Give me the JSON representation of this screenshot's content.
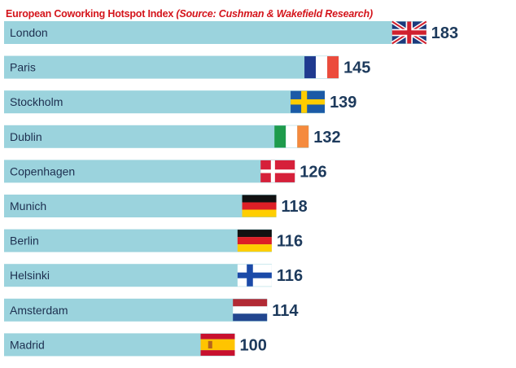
{
  "title": {
    "main": "European Coworking Hotspot Index",
    "source": "(Source: Cushman & Wakefield Research)"
  },
  "chart_data": {
    "type": "bar",
    "orientation": "horizontal",
    "categories": [
      "London",
      "Paris",
      "Stockholm",
      "Dublin",
      "Copenhagen",
      "Munich",
      "Berlin",
      "Helsinki",
      "Amsterdam",
      "Madrid"
    ],
    "values": [
      183,
      145,
      139,
      132,
      126,
      118,
      116,
      116,
      114,
      100
    ],
    "flags": [
      "uk",
      "france",
      "sweden",
      "ireland",
      "denmark",
      "germany",
      "germany",
      "finland",
      "netherlands",
      "spain"
    ],
    "title": "European Coworking Hotspot Index",
    "xlabel": "",
    "ylabel": "",
    "grid": false,
    "legend": "none",
    "colors": {
      "bar": "#9bd3dd",
      "value_text": "#1d3a5c",
      "label_text": "#1d2f4f"
    }
  }
}
